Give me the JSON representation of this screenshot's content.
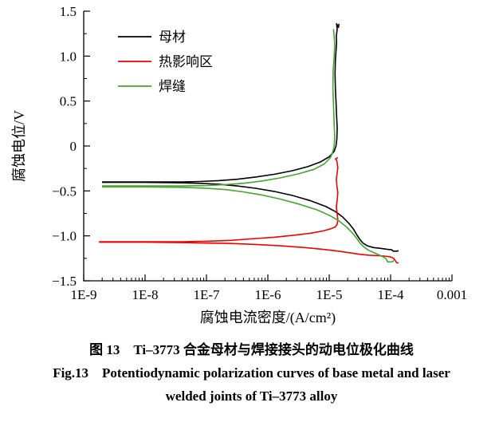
{
  "figure": {
    "caption_zh": "图 13　Ti–3773 合金母材与焊接接头的动电位极化曲线",
    "caption_en_line1": "Fig.13　Potentiodynamic polarization curves of base metal and laser",
    "caption_en_line2": "welded joints of Ti–3773 alloy"
  },
  "chart_data": {
    "type": "line",
    "x_scale": "log",
    "title": "",
    "xlabel": "腐蚀电流密度/(A/cm²)",
    "ylabel": "腐蚀电位/V",
    "xlim_log": [
      -9,
      -3
    ],
    "ylim": [
      -1.5,
      1.5
    ],
    "grid": false,
    "legend_position": "upper-left-inside",
    "x_ticks": [
      {
        "log": -9,
        "label": "1E-9"
      },
      {
        "log": -8,
        "label": "1E-8"
      },
      {
        "log": -7,
        "label": "1E-7"
      },
      {
        "log": -6,
        "label": "1E-6"
      },
      {
        "log": -5,
        "label": "1E-5"
      },
      {
        "log": -4,
        "label": "1E-4"
      },
      {
        "log": -3,
        "label": "0.001"
      }
    ],
    "y_ticks": [
      {
        "value": 1.5,
        "label": "1.5"
      },
      {
        "value": 1.0,
        "label": "1.0"
      },
      {
        "value": 0.5,
        "label": "0.5"
      },
      {
        "value": 0,
        "label": "0"
      },
      {
        "value": -0.5,
        "label": "−0.5"
      },
      {
        "value": -1.0,
        "label": "−1.0"
      },
      {
        "value": -1.5,
        "label": "−1.5"
      }
    ],
    "series": [
      {
        "id": "base-metal",
        "name": "母材",
        "color": "#000000",
        "segments": {
          "anodic": [
            [
              -8.7,
              -0.4
            ],
            [
              -8.0,
              -0.4
            ],
            [
              -7.4,
              -0.4
            ],
            [
              -7.1,
              -0.395
            ],
            [
              -6.8,
              -0.385
            ],
            [
              -6.5,
              -0.37
            ],
            [
              -6.2,
              -0.345
            ],
            [
              -5.9,
              -0.315
            ],
            [
              -5.6,
              -0.275
            ],
            [
              -5.35,
              -0.23
            ],
            [
              -5.15,
              -0.18
            ],
            [
              -5.0,
              -0.12
            ],
            [
              -4.92,
              -0.06
            ],
            [
              -4.89,
              0.0
            ],
            [
              -4.875,
              0.08
            ],
            [
              -4.87,
              0.2
            ],
            [
              -4.88,
              0.35
            ],
            [
              -4.89,
              0.5
            ],
            [
              -4.9,
              0.65
            ],
            [
              -4.905,
              0.8
            ],
            [
              -4.9,
              0.95
            ],
            [
              -4.89,
              1.05
            ],
            [
              -4.88,
              1.15
            ],
            [
              -4.885,
              1.22
            ],
            [
              -4.87,
              1.3
            ],
            [
              -4.88,
              1.36
            ],
            [
              -4.85,
              1.32
            ],
            [
              -4.84,
              1.36
            ]
          ],
          "cathodic": [
            [
              -8.7,
              -0.405
            ],
            [
              -8.0,
              -0.405
            ],
            [
              -7.4,
              -0.41
            ],
            [
              -7.1,
              -0.415
            ],
            [
              -6.8,
              -0.425
            ],
            [
              -6.5,
              -0.445
            ],
            [
              -6.2,
              -0.47
            ],
            [
              -5.9,
              -0.505
            ],
            [
              -5.6,
              -0.55
            ],
            [
              -5.3,
              -0.61
            ],
            [
              -5.05,
              -0.675
            ],
            [
              -4.9,
              -0.73
            ],
            [
              -4.78,
              -0.79
            ],
            [
              -4.68,
              -0.86
            ],
            [
              -4.6,
              -0.93
            ],
            [
              -4.55,
              -0.99
            ],
            [
              -4.5,
              -1.04
            ],
            [
              -4.45,
              -1.08
            ],
            [
              -4.38,
              -1.11
            ],
            [
              -4.28,
              -1.13
            ],
            [
              -4.15,
              -1.14
            ],
            [
              -4.05,
              -1.15
            ],
            [
              -3.98,
              -1.155
            ],
            [
              -3.96,
              -1.17
            ],
            [
              -3.9,
              -1.17
            ],
            [
              -3.87,
              -1.165
            ]
          ]
        }
      },
      {
        "id": "heat-affected-zone",
        "name": "热影响区",
        "color": "#f20000",
        "segments": {
          "anodic": [
            [
              -8.75,
              -1.065
            ],
            [
              -8.0,
              -1.065
            ],
            [
              -7.4,
              -1.065
            ],
            [
              -7.0,
              -1.06
            ],
            [
              -6.6,
              -1.05
            ],
            [
              -6.2,
              -1.03
            ],
            [
              -5.9,
              -1.015
            ],
            [
              -5.6,
              -0.995
            ],
            [
              -5.3,
              -0.97
            ],
            [
              -5.1,
              -0.945
            ],
            [
              -4.97,
              -0.92
            ],
            [
              -4.9,
              -0.9
            ],
            [
              -4.87,
              -0.87
            ],
            [
              -4.86,
              -0.82
            ],
            [
              -4.87,
              -0.75
            ],
            [
              -4.885,
              -0.68
            ],
            [
              -4.87,
              -0.6
            ],
            [
              -4.86,
              -0.52
            ],
            [
              -4.875,
              -0.44
            ],
            [
              -4.885,
              -0.37
            ],
            [
              -4.87,
              -0.3
            ],
            [
              -4.86,
              -0.24
            ],
            [
              -4.87,
              -0.19
            ],
            [
              -4.88,
              -0.155
            ],
            [
              -4.9,
              -0.145
            ],
            [
              -4.86,
              -0.13
            ]
          ],
          "cathodic": [
            [
              -8.75,
              -1.07
            ],
            [
              -8.0,
              -1.07
            ],
            [
              -7.4,
              -1.075
            ],
            [
              -7.0,
              -1.08
            ],
            [
              -6.6,
              -1.085
            ],
            [
              -6.2,
              -1.095
            ],
            [
              -5.8,
              -1.11
            ],
            [
              -5.4,
              -1.13
            ],
            [
              -5.1,
              -1.15
            ],
            [
              -4.85,
              -1.17
            ],
            [
              -4.65,
              -1.19
            ],
            [
              -4.5,
              -1.205
            ],
            [
              -4.35,
              -1.215
            ],
            [
              -4.2,
              -1.22
            ],
            [
              -4.1,
              -1.225
            ],
            [
              -4.0,
              -1.235
            ],
            [
              -3.95,
              -1.25
            ],
            [
              -3.92,
              -1.28
            ],
            [
              -3.9,
              -1.3
            ],
            [
              -3.87,
              -1.3
            ]
          ]
        }
      },
      {
        "id": "weld-seam",
        "name": "焊缝",
        "color": "#46a52a",
        "segments": {
          "anodic": [
            [
              -8.7,
              -0.445
            ],
            [
              -8.0,
              -0.445
            ],
            [
              -7.4,
              -0.445
            ],
            [
              -7.0,
              -0.44
            ],
            [
              -6.7,
              -0.43
            ],
            [
              -6.4,
              -0.415
            ],
            [
              -6.1,
              -0.39
            ],
            [
              -5.8,
              -0.355
            ],
            [
              -5.5,
              -0.31
            ],
            [
              -5.25,
              -0.26
            ],
            [
              -5.08,
              -0.2
            ],
            [
              -4.98,
              -0.13
            ],
            [
              -4.94,
              -0.06
            ],
            [
              -4.92,
              0.0
            ],
            [
              -4.91,
              0.1
            ],
            [
              -4.92,
              0.25
            ],
            [
              -4.93,
              0.45
            ],
            [
              -4.94,
              0.65
            ],
            [
              -4.935,
              0.85
            ],
            [
              -4.92,
              1.0
            ],
            [
              -4.91,
              1.12
            ],
            [
              -4.92,
              1.22
            ],
            [
              -4.93,
              1.3
            ]
          ],
          "cathodic": [
            [
              -8.7,
              -0.455
            ],
            [
              -8.0,
              -0.455
            ],
            [
              -7.4,
              -0.46
            ],
            [
              -7.0,
              -0.47
            ],
            [
              -6.7,
              -0.485
            ],
            [
              -6.4,
              -0.51
            ],
            [
              -6.1,
              -0.545
            ],
            [
              -5.8,
              -0.59
            ],
            [
              -5.5,
              -0.645
            ],
            [
              -5.2,
              -0.71
            ],
            [
              -5.0,
              -0.77
            ],
            [
              -4.85,
              -0.83
            ],
            [
              -4.72,
              -0.9
            ],
            [
              -4.62,
              -0.97
            ],
            [
              -4.55,
              -1.03
            ],
            [
              -4.5,
              -1.08
            ],
            [
              -4.44,
              -1.12
            ],
            [
              -4.36,
              -1.16
            ],
            [
              -4.26,
              -1.19
            ],
            [
              -4.18,
              -1.215
            ],
            [
              -4.12,
              -1.235
            ],
            [
              -4.08,
              -1.25
            ],
            [
              -4.06,
              -1.27
            ],
            [
              -4.05,
              -1.29
            ],
            [
              -4.0,
              -1.29
            ],
            [
              -3.96,
              -1.285
            ],
            [
              -3.95,
              -1.27
            ]
          ]
        }
      }
    ]
  }
}
